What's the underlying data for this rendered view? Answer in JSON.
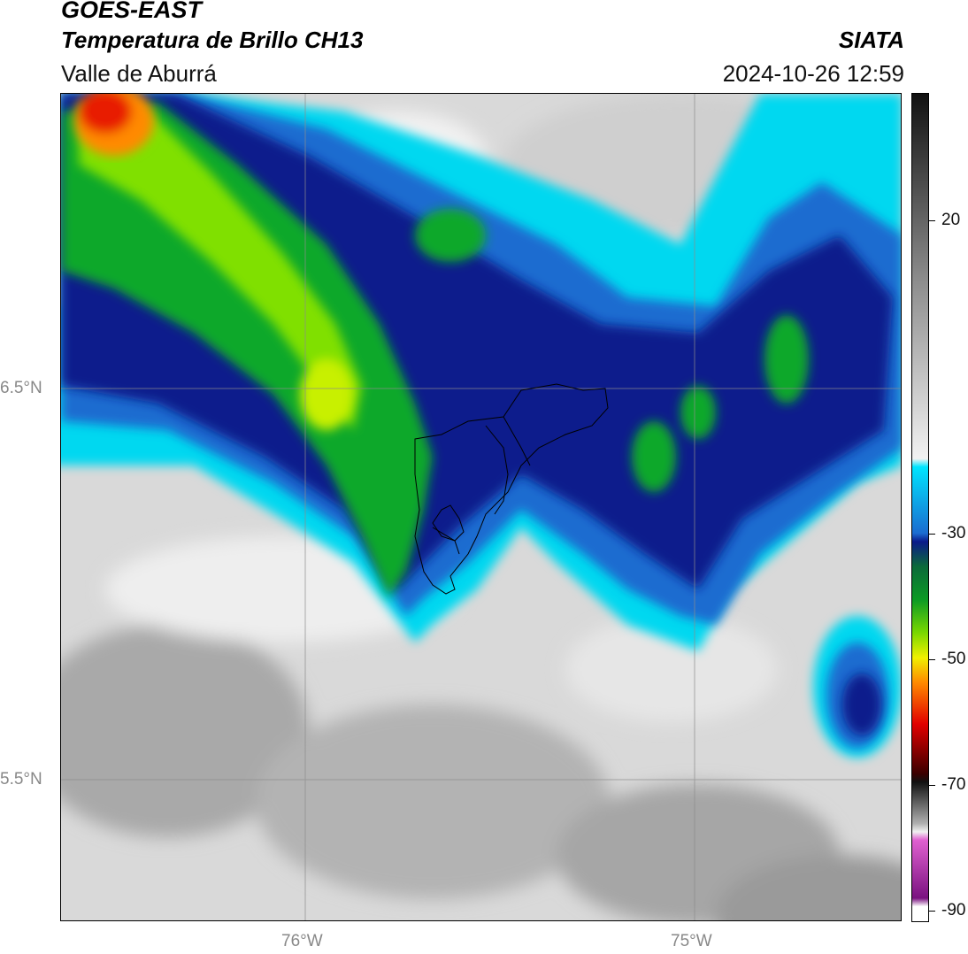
{
  "header": {
    "satellite": "GOES-EAST",
    "product": "Temperatura de Brillo CH13",
    "region": "Valle de Aburrá",
    "brand": "SIATA",
    "timestamp": "2024-10-26 12:59"
  },
  "map": {
    "lat_labels": [
      "6.5°N",
      "5.5°N"
    ],
    "lon_labels": [
      "76°W",
      "75°W"
    ],
    "gridline_color": "#8c8c8c"
  },
  "colorbar": {
    "labels": [
      "20",
      "-30",
      "-50",
      "-70",
      "-90"
    ],
    "colors": {
      "warm_gray_top": "#111111",
      "warm_gray_bottom": "#f2f2f2",
      "cyan": "#00e5ff",
      "dark_blue": "#0a1a8a",
      "green": "#0c9a24",
      "yellow": "#f0f000",
      "orange": "#ff8a00",
      "red": "#e20000",
      "magenta": "#e060d0",
      "purple": "#7a1280"
    }
  }
}
